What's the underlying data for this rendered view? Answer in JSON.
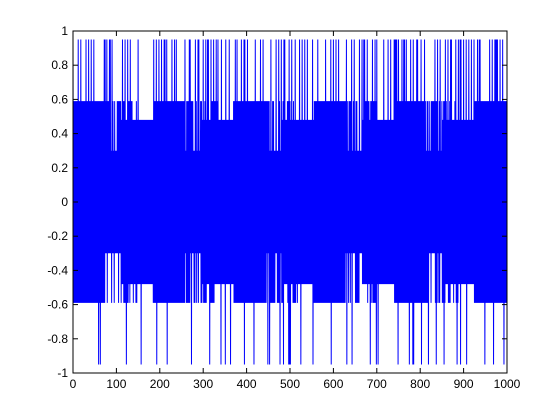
{
  "chart_data": {
    "type": "line",
    "title": "",
    "xlabel": "",
    "ylabel": "",
    "xlim": [
      0,
      1000
    ],
    "ylim": [
      -1,
      1
    ],
    "grid": false,
    "legend": "none",
    "x_ticks": [
      0,
      100,
      200,
      300,
      400,
      500,
      600,
      700,
      800,
      900,
      1000
    ],
    "y_ticks": [
      -1,
      -0.8,
      -0.6,
      -0.4,
      -0.2,
      0,
      0.2,
      0.4,
      0.6,
      0.8,
      1
    ],
    "x_tick_labels": [
      "0",
      "100",
      "200",
      "300",
      "400",
      "500",
      "600",
      "700",
      "800",
      "900",
      "1000"
    ],
    "y_tick_labels": [
      "-1",
      "-0.8",
      "-0.6",
      "-0.4",
      "-0.2",
      "0",
      "0.2",
      "0.4",
      "0.6",
      "0.8",
      "1"
    ],
    "series": [
      {
        "color": "#0000ff",
        "x_start": 0,
        "x_end": 1000,
        "samples": 1001,
        "amplitude_levels": [
          0.95,
          0.59,
          0.48,
          0.3
        ],
        "peak_value": 0.95,
        "trough_value": -0.95
      }
    ]
  }
}
